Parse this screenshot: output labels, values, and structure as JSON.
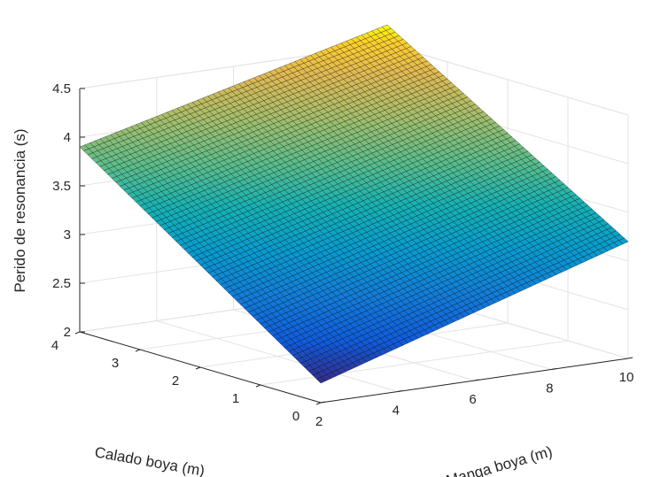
{
  "chart_data": {
    "type": "surface",
    "title": "",
    "xlabel": "Manga boya (m)",
    "ylabel": "Calado boya (m)",
    "zlabel": "Perido de resonancia (s)",
    "xlim": [
      2,
      10
    ],
    "ylim": [
      0,
      4
    ],
    "zlim": [
      2,
      4.5
    ],
    "xticks": [
      "2",
      "4",
      "6",
      "8",
      "10"
    ],
    "yticks": [
      "0",
      "1",
      "2",
      "3",
      "4"
    ],
    "zticks": [
      "2",
      "2.5",
      "3",
      "3.5",
      "4",
      "4.5"
    ],
    "grid": true,
    "colormap": "parula",
    "mesh_resolution": [
      60,
      60
    ],
    "corner_values": [
      {
        "x": 2,
        "y": 0,
        "z": 2.2
      },
      {
        "x": 10,
        "y": 0,
        "z": 3.2
      },
      {
        "x": 2,
        "y": 4,
        "z": 3.9
      },
      {
        "x": 10,
        "y": 4,
        "z": 4.7
      }
    ],
    "colors": {
      "low": "#352a87",
      "mid": "#1fa8b5",
      "high": "#f9fb0e",
      "mesh": "#000000"
    }
  }
}
